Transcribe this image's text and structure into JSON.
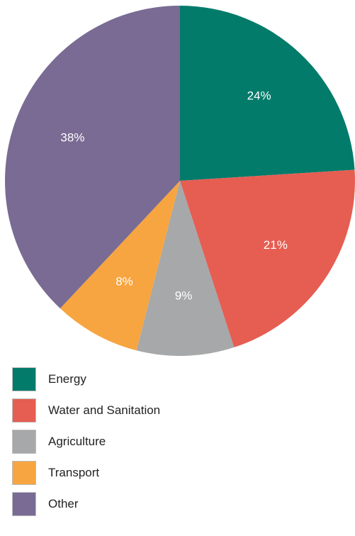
{
  "chart_data": {
    "type": "pie",
    "categories": [
      "Energy",
      "Water and Sanitation",
      "Agriculture",
      "Transport",
      "Other"
    ],
    "values": [
      24,
      21,
      9,
      8,
      38
    ],
    "data_labels": [
      "24%",
      "21%",
      "9%",
      "8%",
      "38%"
    ],
    "colors": [
      "#037b6b",
      "#e65d52",
      "#a6a8aa",
      "#f7a540",
      "#796b93"
    ],
    "start": "top, clockwise",
    "legend_position": "bottom-left",
    "title": "",
    "xlabel": "",
    "ylabel": ""
  }
}
